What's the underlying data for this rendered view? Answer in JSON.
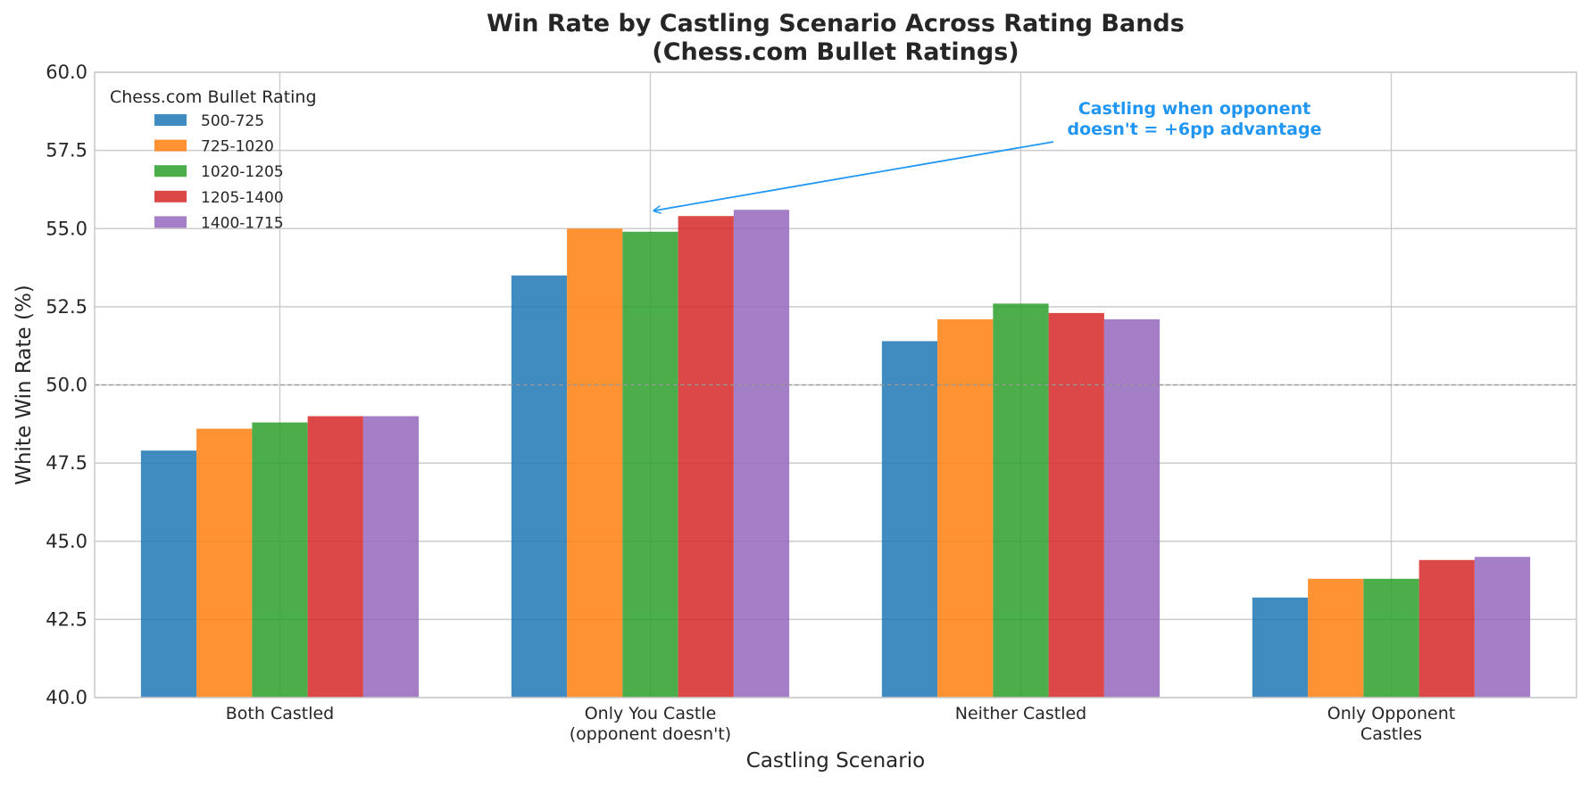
{
  "chart_data": {
    "type": "bar",
    "title": [
      "Win Rate by Castling Scenario Across Rating Bands",
      "(Chess.com Bullet Ratings)"
    ],
    "xlabel": "Castling Scenario",
    "ylabel": "White Win Rate (%)",
    "ylim": [
      40.0,
      60.0
    ],
    "yticks": [
      "40.0",
      "42.5",
      "45.0",
      "47.5",
      "50.0",
      "52.5",
      "55.0",
      "57.5",
      "60.0"
    ],
    "categories": [
      [
        "Both Castled"
      ],
      [
        "Only You Castle",
        "(opponent doesn't)"
      ],
      [
        "Neither Castled"
      ],
      [
        "Only Opponent",
        "Castles"
      ]
    ],
    "legend_title": "Chess.com Bullet Rating",
    "legend_position": "top-left",
    "grid": true,
    "reference_line": 50.0,
    "series": [
      {
        "name": "500-725",
        "color": "#1f77b4",
        "values": [
          47.9,
          53.5,
          51.4,
          43.2
        ]
      },
      {
        "name": "725-1020",
        "color": "#ff7f0e",
        "values": [
          48.6,
          55.0,
          52.1,
          43.8
        ]
      },
      {
        "name": "1020-1205",
        "color": "#2ca02c",
        "values": [
          48.8,
          54.9,
          52.6,
          43.8
        ]
      },
      {
        "name": "1205-1400",
        "color": "#d62728",
        "values": [
          49.0,
          55.4,
          52.3,
          44.4
        ]
      },
      {
        "name": "1400-1715",
        "color": "#9467bd",
        "values": [
          49.0,
          55.6,
          52.1,
          44.5
        ]
      }
    ],
    "annotation": {
      "lines": [
        "Castling when opponent",
        "doesn't = +6pp advantage"
      ],
      "color": "#2196f3",
      "target_category": 1,
      "target_value": 55.6
    }
  }
}
